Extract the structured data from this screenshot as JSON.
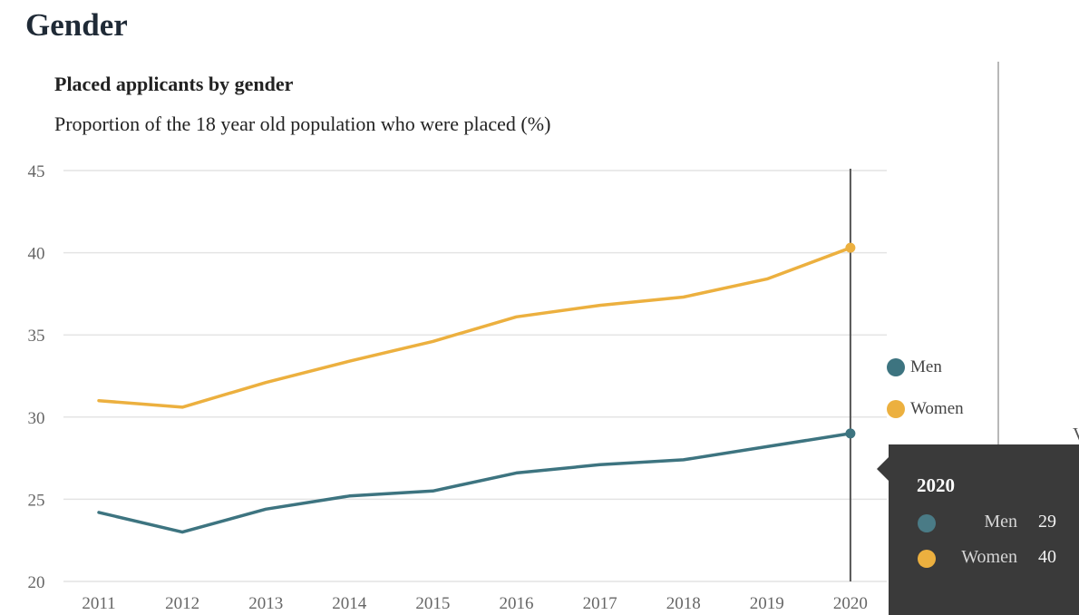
{
  "section_title": "Gender",
  "colors": {
    "men": "#3d7480",
    "women": "#ecb03f",
    "grid": "#e4e4e4",
    "axis_text": "#666666",
    "cursor": "#555555"
  },
  "edge_glyph": "V",
  "legend": [
    {
      "label": "Men",
      "color": "#3d7480"
    },
    {
      "label": "Women",
      "color": "#ecb03f"
    }
  ],
  "tooltip": {
    "year": "2020",
    "rows": [
      {
        "label": "Men",
        "value": "29",
        "color": "#4a7b86"
      },
      {
        "label": "Women",
        "value": "40",
        "color": "#ecb03f"
      }
    ]
  },
  "chart_data": {
    "type": "line",
    "title": "Placed applicants by gender",
    "subtitle": "Proportion of the 18 year old population who were placed (%)",
    "x": [
      "2011",
      "2012",
      "2013",
      "2014",
      "2015",
      "2016",
      "2017",
      "2018",
      "2019",
      "2020"
    ],
    "ylim": [
      20,
      45
    ],
    "yticks": [
      20,
      25,
      30,
      35,
      40,
      45
    ],
    "grid": true,
    "legend_position": "right",
    "highlight_x": "2020",
    "series": [
      {
        "name": "Men",
        "color": "#3d7480",
        "values": [
          24.2,
          23.0,
          24.4,
          25.2,
          25.5,
          26.6,
          27.1,
          27.4,
          28.2,
          29.0
        ]
      },
      {
        "name": "Women",
        "color": "#ecb03f",
        "values": [
          31.0,
          30.6,
          32.1,
          33.4,
          34.6,
          36.1,
          36.8,
          37.3,
          38.4,
          40.3
        ]
      }
    ]
  }
}
